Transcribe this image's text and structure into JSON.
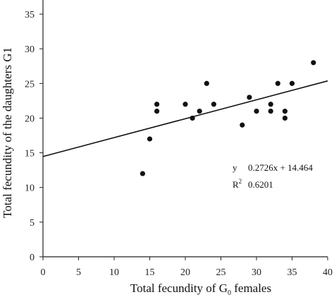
{
  "chart_data": {
    "type": "scatter",
    "xlabel_main": "Total fecundity of G",
    "xlabel_sub": "0",
    "xlabel_tail": " females",
    "ylabel": "Total fecundity of the daughters G1",
    "xlim": [
      0,
      40
    ],
    "ylim": [
      0,
      35
    ],
    "x_ticks": [
      0,
      5,
      10,
      15,
      20,
      25,
      30,
      35,
      40
    ],
    "y_ticks": [
      0,
      5,
      10,
      15,
      20,
      25,
      30,
      35
    ],
    "grid": false,
    "points": [
      {
        "x": 14,
        "y": 12
      },
      {
        "x": 15,
        "y": 17
      },
      {
        "x": 16,
        "y": 21
      },
      {
        "x": 16,
        "y": 22
      },
      {
        "x": 20,
        "y": 22
      },
      {
        "x": 21,
        "y": 20
      },
      {
        "x": 22,
        "y": 21
      },
      {
        "x": 23,
        "y": 25
      },
      {
        "x": 24,
        "y": 22
      },
      {
        "x": 28,
        "y": 19
      },
      {
        "x": 29,
        "y": 23
      },
      {
        "x": 30,
        "y": 21
      },
      {
        "x": 32,
        "y": 21
      },
      {
        "x": 32,
        "y": 22
      },
      {
        "x": 33,
        "y": 25
      },
      {
        "x": 34,
        "y": 20
      },
      {
        "x": 34,
        "y": 21
      },
      {
        "x": 35,
        "y": 25
      },
      {
        "x": 38,
        "y": 28
      }
    ],
    "trendline": {
      "slope": 0.2726,
      "intercept": 14.464
    },
    "equation": {
      "y_label": "y",
      "formula": "0.2726x + 14.464",
      "r2_label": "R",
      "r2_exp": "2",
      "r2_value": "0.6201"
    },
    "colors": {
      "points": "#111111",
      "line": "#111111",
      "axis": "#222222"
    }
  }
}
